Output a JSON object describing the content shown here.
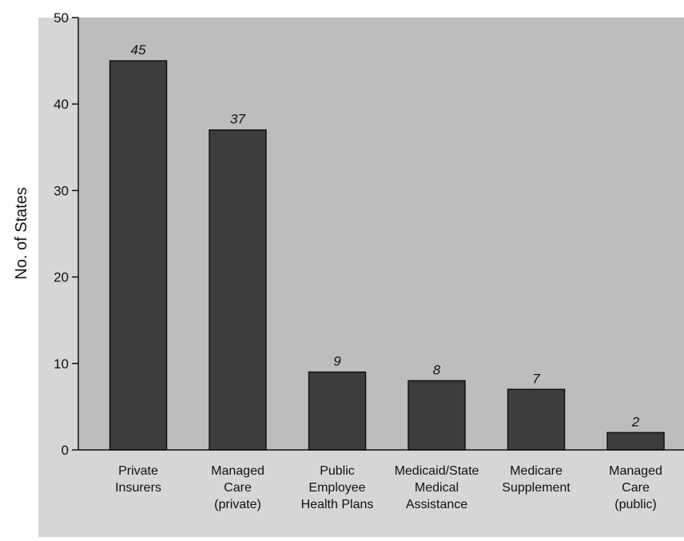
{
  "chart_data": {
    "type": "bar",
    "ylabel": "No. of States",
    "xlabel": "",
    "ylim": [
      0,
      50
    ],
    "yticks": [
      0,
      10,
      20,
      30,
      40,
      50
    ],
    "categories": [
      [
        "Private",
        "Insurers"
      ],
      [
        "Managed",
        "Care",
        "(private)"
      ],
      [
        "Public",
        "Employee",
        "Health Plans"
      ],
      [
        "Medicaid/State",
        "Medical",
        "Assistance"
      ],
      [
        "Medicare",
        "Supplement"
      ],
      [
        "Managed",
        "Care",
        "(public)"
      ]
    ],
    "values": [
      45,
      37,
      9,
      8,
      7,
      2
    ],
    "data_labels": [
      "45",
      "37",
      "9",
      "8",
      "7",
      "2"
    ],
    "grid": false,
    "colors": {
      "plot_background": "#bdbdbd",
      "bar_fill": "#3d3d3d",
      "bar_stroke": "#111111"
    }
  }
}
